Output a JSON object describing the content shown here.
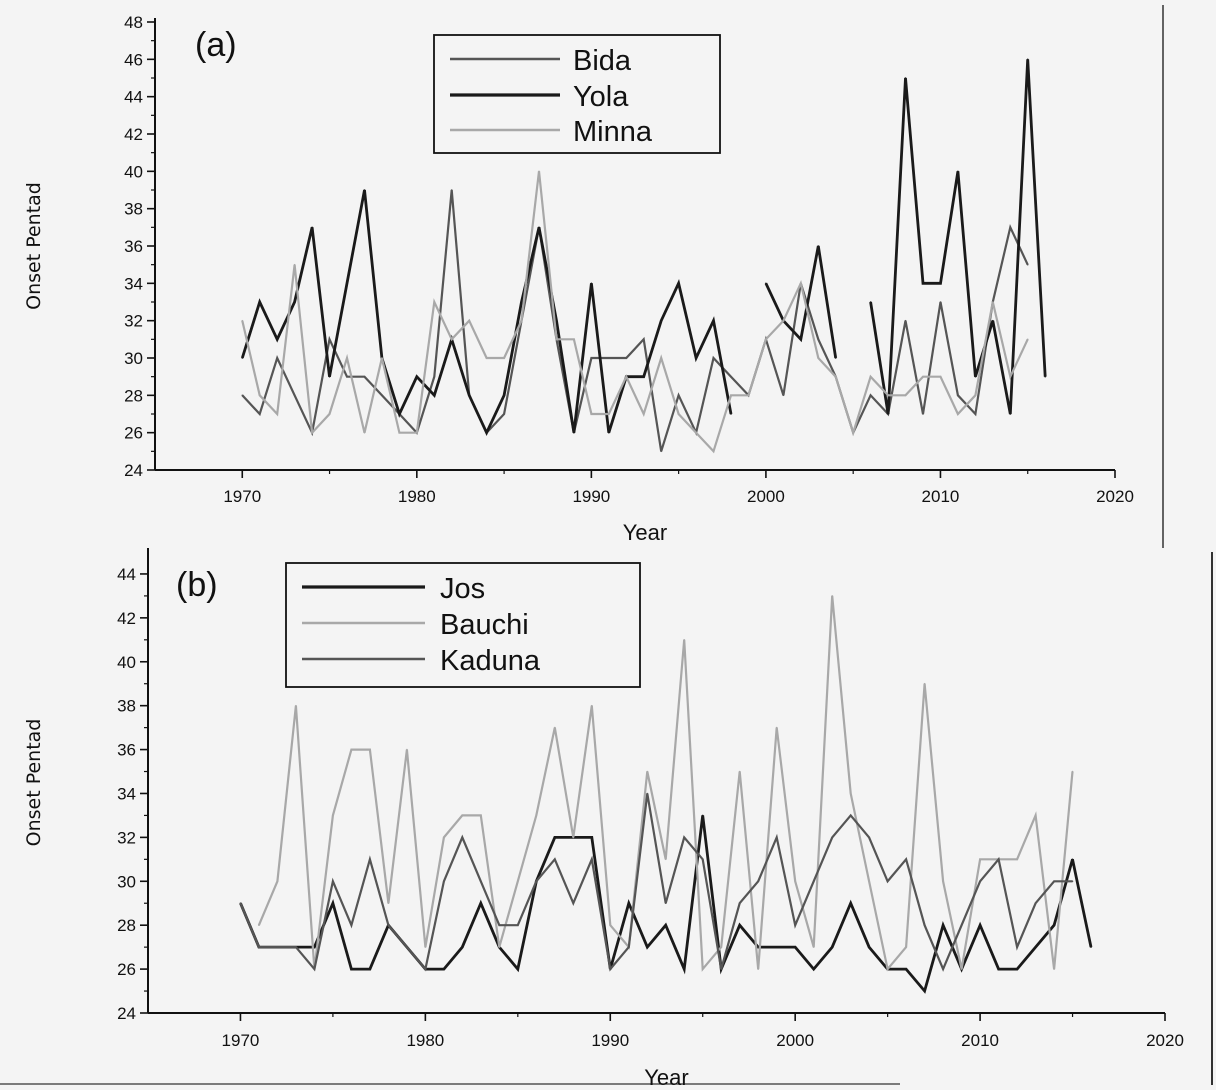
{
  "chart_data": [
    {
      "type": "line",
      "panel_label": "(a)",
      "xlabel": "Year",
      "ylabel": "Onset Pentad",
      "xlim": [
        1965,
        2020
      ],
      "ylim": [
        24,
        48
      ],
      "xticks": [
        1970,
        1980,
        1990,
        2000,
        2010,
        2020
      ],
      "yticks": [
        24,
        26,
        28,
        30,
        32,
        34,
        36,
        38,
        40,
        42,
        44,
        46,
        48
      ],
      "grid": false,
      "legend_position": "top-center",
      "series": [
        {
          "name": "Bida",
          "color": "#555555",
          "width": 2.2,
          "x": [
            1970,
            1971,
            1972,
            1973,
            1974,
            1975,
            1976,
            1977,
            1978,
            1979,
            1980,
            1981,
            1982,
            1983,
            1984,
            1985,
            1986,
            1987,
            1988,
            1989,
            1990,
            1991,
            1992,
            1993,
            1994,
            1995,
            1996,
            1997,
            1998,
            1999,
            2000,
            2001,
            2002,
            2003,
            2004,
            2005,
            2006,
            2007,
            2008,
            2009,
            2010,
            2011,
            2012,
            2013,
            2014,
            2015
          ],
          "y": [
            28,
            27,
            30,
            28,
            26,
            31,
            29,
            29,
            28,
            27,
            26,
            29,
            39,
            28,
            26,
            27,
            32,
            37,
            31,
            26,
            30,
            30,
            30,
            31,
            25,
            28,
            26,
            30,
            29,
            28,
            31,
            28,
            34,
            31,
            29,
            26,
            28,
            27,
            32,
            27,
            33,
            28,
            27,
            33,
            37,
            35
          ]
        },
        {
          "name": "Yola",
          "color": "#1a1a1a",
          "width": 2.8,
          "x": [
            1970,
            1971,
            1972,
            1973,
            1974,
            1975,
            1976,
            1977,
            1978,
            1979,
            1980,
            1981,
            1982,
            1983,
            1984,
            1985,
            1986,
            1987,
            1988,
            1989,
            1990,
            1991,
            1992,
            1993,
            1994,
            1995,
            1996,
            1997,
            1998,
            null,
            2000,
            2001,
            2002,
            2003,
            2004,
            null,
            2006,
            2007,
            2008,
            2009,
            2010,
            2011,
            2012,
            2013,
            2014,
            2015,
            2016
          ],
          "y": [
            30,
            33,
            31,
            33,
            37,
            29,
            34,
            39,
            30,
            27,
            29,
            28,
            31,
            28,
            26,
            28,
            33,
            37,
            32,
            26,
            34,
            26,
            29,
            29,
            32,
            34,
            30,
            32,
            27,
            null,
            34,
            32,
            31,
            36,
            30,
            null,
            33,
            27,
            45,
            34,
            34,
            40,
            29,
            32,
            27,
            46,
            29
          ]
        },
        {
          "name": "Minna",
          "color": "#a8a8a8",
          "width": 2.2,
          "x": [
            1970,
            1971,
            1972,
            1973,
            1974,
            1975,
            1976,
            1977,
            1978,
            1979,
            1980,
            1981,
            1982,
            1983,
            1984,
            1985,
            1986,
            1987,
            1988,
            1989,
            1990,
            1991,
            1992,
            1993,
            1994,
            1995,
            1996,
            1997,
            1998,
            1999,
            2000,
            2001,
            2002,
            2003,
            2004,
            2005,
            2006,
            2007,
            2008,
            2009,
            2010,
            2011,
            2012,
            2013,
            2014,
            2015
          ],
          "y": [
            32,
            28,
            27,
            35,
            26,
            27,
            30,
            26,
            30,
            26,
            26,
            33,
            31,
            32,
            30,
            30,
            32,
            40,
            31,
            31,
            27,
            27,
            29,
            27,
            30,
            27,
            26,
            25,
            28,
            28,
            31,
            32,
            34,
            30,
            29,
            26,
            29,
            28,
            28,
            29,
            29,
            27,
            28,
            33,
            29,
            31
          ]
        }
      ]
    },
    {
      "type": "line",
      "panel_label": "(b)",
      "xlabel": "Year",
      "ylabel": "Onset Pentad",
      "xlim": [
        1965,
        2020
      ],
      "ylim": [
        24,
        45
      ],
      "xticks": [
        1970,
        1980,
        1990,
        2000,
        2010,
        2020
      ],
      "yticks": [
        24,
        26,
        28,
        30,
        32,
        34,
        36,
        38,
        40,
        42,
        44
      ],
      "grid": false,
      "legend_position": "top-left",
      "series": [
        {
          "name": "Jos",
          "color": "#1a1a1a",
          "width": 2.8,
          "x": [
            1970,
            1971,
            1972,
            1973,
            1974,
            1975,
            1976,
            1977,
            1978,
            1979,
            1980,
            1981,
            1982,
            1983,
            1984,
            1985,
            1986,
            1987,
            1988,
            1989,
            1990,
            1991,
            1992,
            1993,
            1994,
            1995,
            1996,
            1997,
            1998,
            1999,
            2000,
            2001,
            2002,
            2003,
            2004,
            2005,
            2006,
            2007,
            2008,
            2009,
            2010,
            2011,
            2012,
            2013,
            2014,
            2015,
            2016
          ],
          "y": [
            29,
            27,
            27,
            27,
            27,
            29,
            26,
            26,
            28,
            27,
            26,
            26,
            27,
            29,
            27,
            26,
            30,
            32,
            32,
            32,
            26,
            29,
            27,
            28,
            26,
            33,
            26,
            28,
            27,
            27,
            27,
            26,
            27,
            29,
            27,
            26,
            26,
            25,
            28,
            26,
            28,
            26,
            26,
            27,
            28,
            31,
            27
          ]
        },
        {
          "name": "Bauchi",
          "color": "#a8a8a8",
          "width": 2.2,
          "x": [
            1971,
            1972,
            1973,
            1974,
            1975,
            1976,
            1977,
            1978,
            1979,
            1980,
            1981,
            1982,
            1983,
            1984,
            1985,
            1986,
            1987,
            1988,
            1989,
            1990,
            1991,
            1992,
            1993,
            1994,
            1995,
            1996,
            1997,
            1998,
            1999,
            2000,
            2001,
            2002,
            2003,
            2004,
            2005,
            2006,
            2007,
            2008,
            2009,
            2010,
            2011,
            2012,
            2013,
            2014,
            2015
          ],
          "y": [
            28,
            30,
            38,
            26,
            33,
            36,
            36,
            29,
            36,
            27,
            32,
            33,
            33,
            27,
            30,
            33,
            37,
            32,
            38,
            28,
            27,
            35,
            31,
            41,
            26,
            27,
            35,
            26,
            37,
            30,
            27,
            43,
            34,
            30,
            26,
            27,
            39,
            30,
            26,
            31,
            31,
            31,
            33,
            26,
            35
          ]
        },
        {
          "name": "Kaduna",
          "color": "#555555",
          "width": 2.2,
          "x": [
            1970,
            1971,
            1972,
            1973,
            1974,
            1975,
            1976,
            1977,
            1978,
            1979,
            1980,
            1981,
            1982,
            1983,
            1984,
            1985,
            1986,
            1987,
            1988,
            1989,
            1990,
            1991,
            1992,
            1993,
            1994,
            1995,
            1996,
            1997,
            1998,
            1999,
            2000,
            2001,
            2002,
            2003,
            2004,
            2005,
            2006,
            2007,
            2008,
            2009,
            2010,
            2011,
            2012,
            2013,
            2014,
            2015
          ],
          "y": [
            29,
            27,
            27,
            27,
            26,
            30,
            28,
            31,
            28,
            27,
            26,
            30,
            32,
            30,
            28,
            28,
            30,
            31,
            29,
            31,
            26,
            27,
            34,
            29,
            32,
            31,
            26,
            29,
            30,
            32,
            28,
            30,
            32,
            33,
            32,
            30,
            31,
            28,
            26,
            28,
            30,
            31,
            27,
            29,
            30,
            30
          ]
        }
      ]
    }
  ]
}
